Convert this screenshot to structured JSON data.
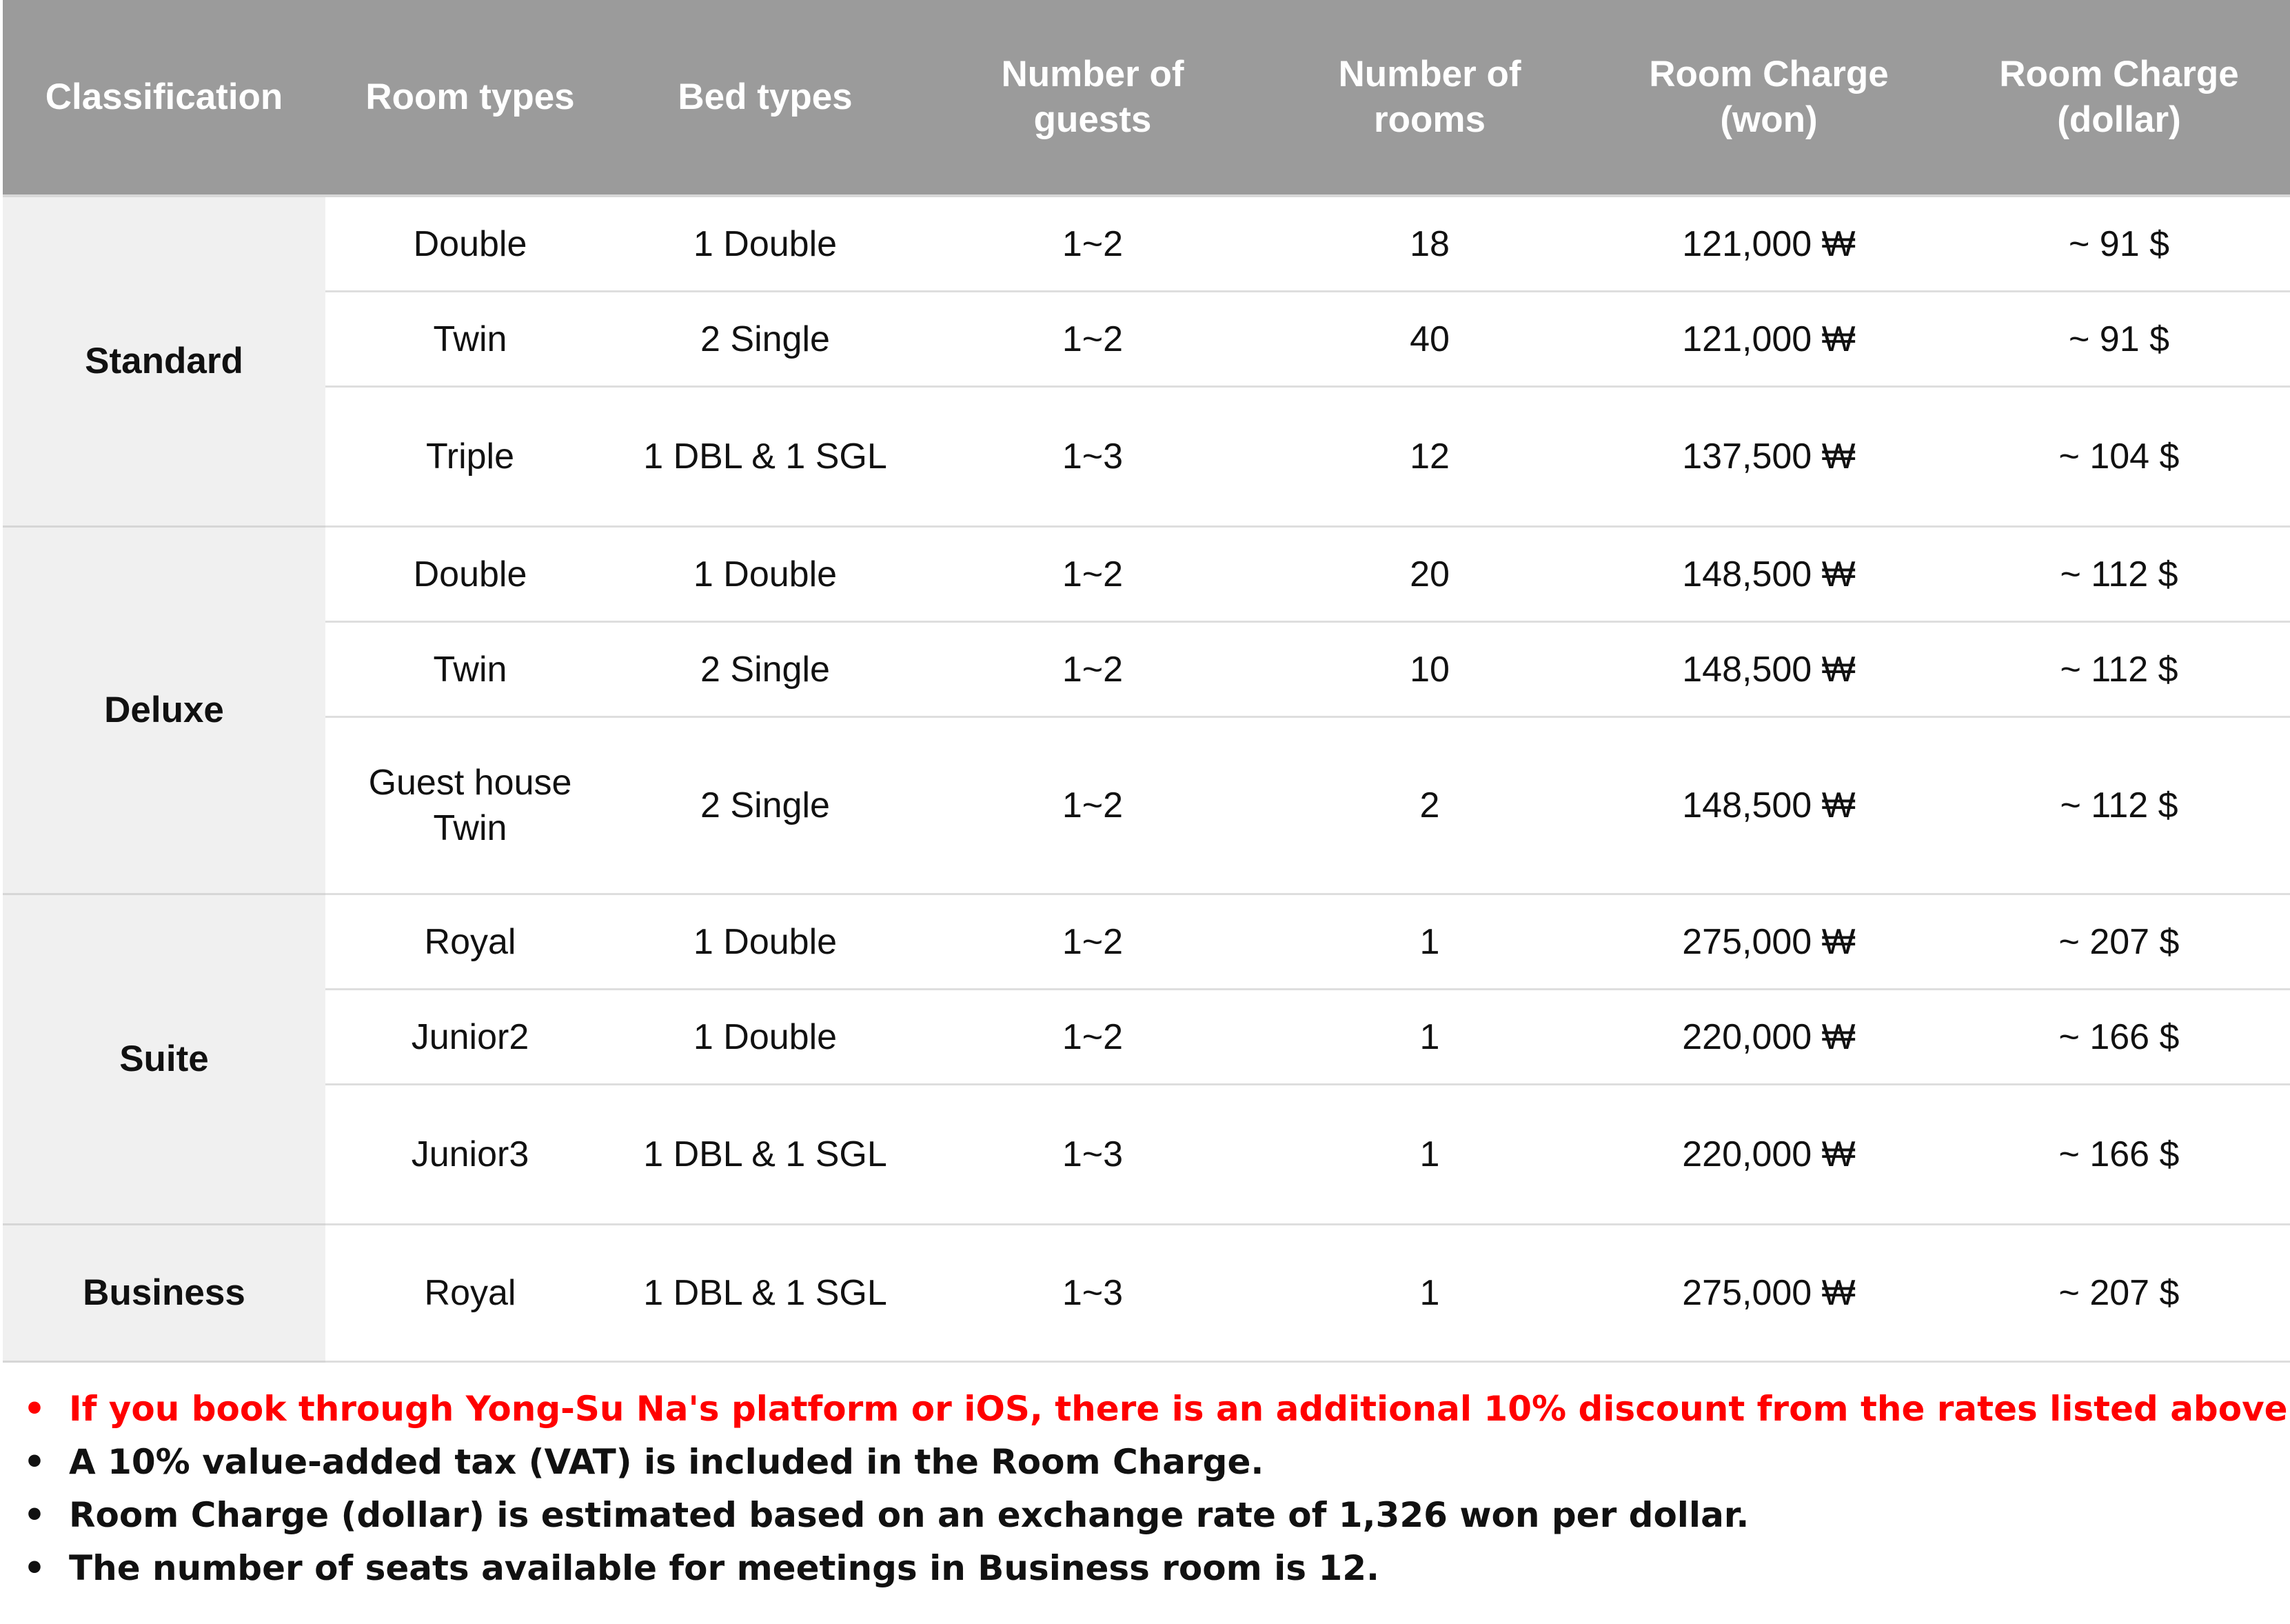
{
  "headers": {
    "classification": "Classification",
    "room_types": "Room types",
    "bed_types": "Bed types",
    "guests_line1": "Number of",
    "guests_line2": "guests",
    "rooms_line1": "Number of",
    "rooms_line2": "rooms",
    "won_line1": "Room Charge",
    "won_line2": "(won)",
    "dollar_line1": "Room Charge",
    "dollar_line2": "(dollar)"
  },
  "groups": [
    {
      "classification": "Standard",
      "rows": [
        {
          "room_type": "Double",
          "bed_type": "1 Double",
          "guests": "1~2",
          "rooms": "18",
          "charge_won": "121,000 ₩",
          "charge_dollar": "~ 91 $"
        },
        {
          "room_type": "Twin",
          "bed_type": "2 Single",
          "guests": "1~2",
          "rooms": "40",
          "charge_won": "121,000 ₩",
          "charge_dollar": "~ 91 $"
        },
        {
          "room_type": "Triple",
          "bed_type": "1 DBL & 1 SGL",
          "guests": "1~3",
          "rooms": "12",
          "charge_won": "137,500 ₩",
          "charge_dollar": "~ 104 $"
        }
      ]
    },
    {
      "classification": "Deluxe",
      "rows": [
        {
          "room_type": "Double",
          "bed_type": "1 Double",
          "guests": "1~2",
          "rooms": "20",
          "charge_won": "148,500 ₩",
          "charge_dollar": "~ 112 $"
        },
        {
          "room_type": "Twin",
          "bed_type": "2 Single",
          "guests": "1~2",
          "rooms": "10",
          "charge_won": "148,500 ₩",
          "charge_dollar": "~ 112 $"
        },
        {
          "room_type_line1": "Guest house",
          "room_type_line2": "Twin",
          "bed_type": "2 Single",
          "guests": "1~2",
          "rooms": "2",
          "charge_won": "148,500 ₩",
          "charge_dollar": "~ 112 $"
        }
      ]
    },
    {
      "classification": "Suite",
      "rows": [
        {
          "room_type": "Royal",
          "bed_type": "1 Double",
          "guests": "1~2",
          "rooms": "1",
          "charge_won": "275,000 ₩",
          "charge_dollar": "~ 207 $"
        },
        {
          "room_type": "Junior2",
          "bed_type": "1 Double",
          "guests": "1~2",
          "rooms": "1",
          "charge_won": "220,000 ₩",
          "charge_dollar": "~ 166 $"
        },
        {
          "room_type": "Junior3",
          "bed_type": "1 DBL & 1 SGL",
          "guests": "1~3",
          "rooms": "1",
          "charge_won": "220,000 ₩",
          "charge_dollar": "~ 166 $"
        }
      ]
    },
    {
      "classification": "Business",
      "rows": [
        {
          "room_type": "Royal",
          "bed_type": "1 DBL & 1 SGL",
          "guests": "1~3",
          "rooms": "1",
          "charge_won": "275,000 ₩",
          "charge_dollar": "~ 207 $"
        }
      ]
    }
  ],
  "notes": {
    "bullet": "•",
    "items": [
      "If you book through Yong-Su Na's platform or iOS, there is an additional 10% discount from the rates listed above.",
      "A 10% value-added tax (VAT) is included in the Room Charge.",
      "Room Charge (dollar) is estimated based on an exchange rate of 1,326 won per dollar.",
      "The number of seats available for meetings in Business room is 12."
    ]
  },
  "colors": {
    "header_background": "#9b9b9b",
    "header_text": "#ffffff",
    "classification_background": "#f0f0f0",
    "highlight_note": "#ff0000"
  }
}
